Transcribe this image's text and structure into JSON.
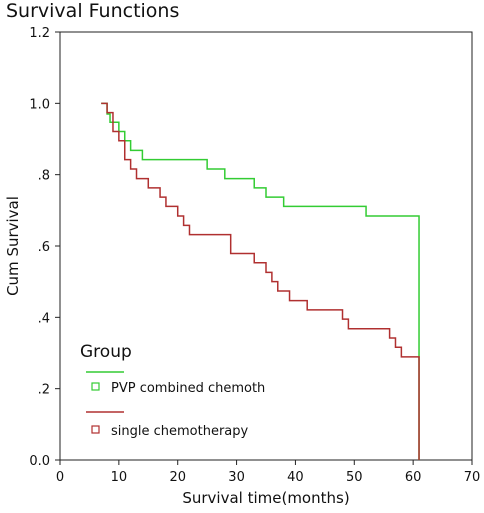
{
  "chart_data": {
    "type": "line",
    "title": "Survival Functions",
    "xlabel": "Survival time(months)",
    "ylabel": "Cum Survival",
    "xlim": [
      0,
      70
    ],
    "ylim": [
      0,
      1.2
    ],
    "x_ticks": [
      "0",
      "10",
      "20",
      "30",
      "40",
      "50",
      "60",
      "70"
    ],
    "y_ticks": [
      "0.0",
      ".2",
      ".4",
      ".6",
      ".8",
      "1.0",
      "1.2"
    ],
    "legend": {
      "title": "Group",
      "placement": "bottom-left"
    },
    "series": [
      {
        "name": "PVP combined chemoth",
        "color": "#33cc33",
        "step_x": [
          7,
          8,
          8.5,
          10,
          11,
          12,
          14,
          25,
          28,
          33,
          35,
          36,
          38,
          52,
          61,
          61
        ],
        "step_y": [
          1.0,
          0.97,
          0.947,
          0.921,
          0.895,
          0.868,
          0.842,
          0.816,
          0.789,
          0.763,
          0.737,
          0.737,
          0.711,
          0.684,
          0.684,
          0.0
        ]
      },
      {
        "name": "single chemotherapy",
        "color": "#b03030",
        "step_x": [
          7,
          8,
          9,
          10,
          11,
          12,
          13,
          15,
          17,
          18,
          20,
          21,
          22,
          29,
          33,
          35,
          36,
          37,
          39,
          42,
          48,
          49,
          56,
          57,
          58,
          61,
          61
        ],
        "step_y": [
          1.0,
          0.974,
          0.921,
          0.895,
          0.842,
          0.816,
          0.789,
          0.763,
          0.737,
          0.711,
          0.684,
          0.658,
          0.632,
          0.579,
          0.553,
          0.526,
          0.5,
          0.474,
          0.447,
          0.421,
          0.395,
          0.368,
          0.342,
          0.316,
          0.289,
          0.289,
          0.0
        ]
      }
    ]
  }
}
